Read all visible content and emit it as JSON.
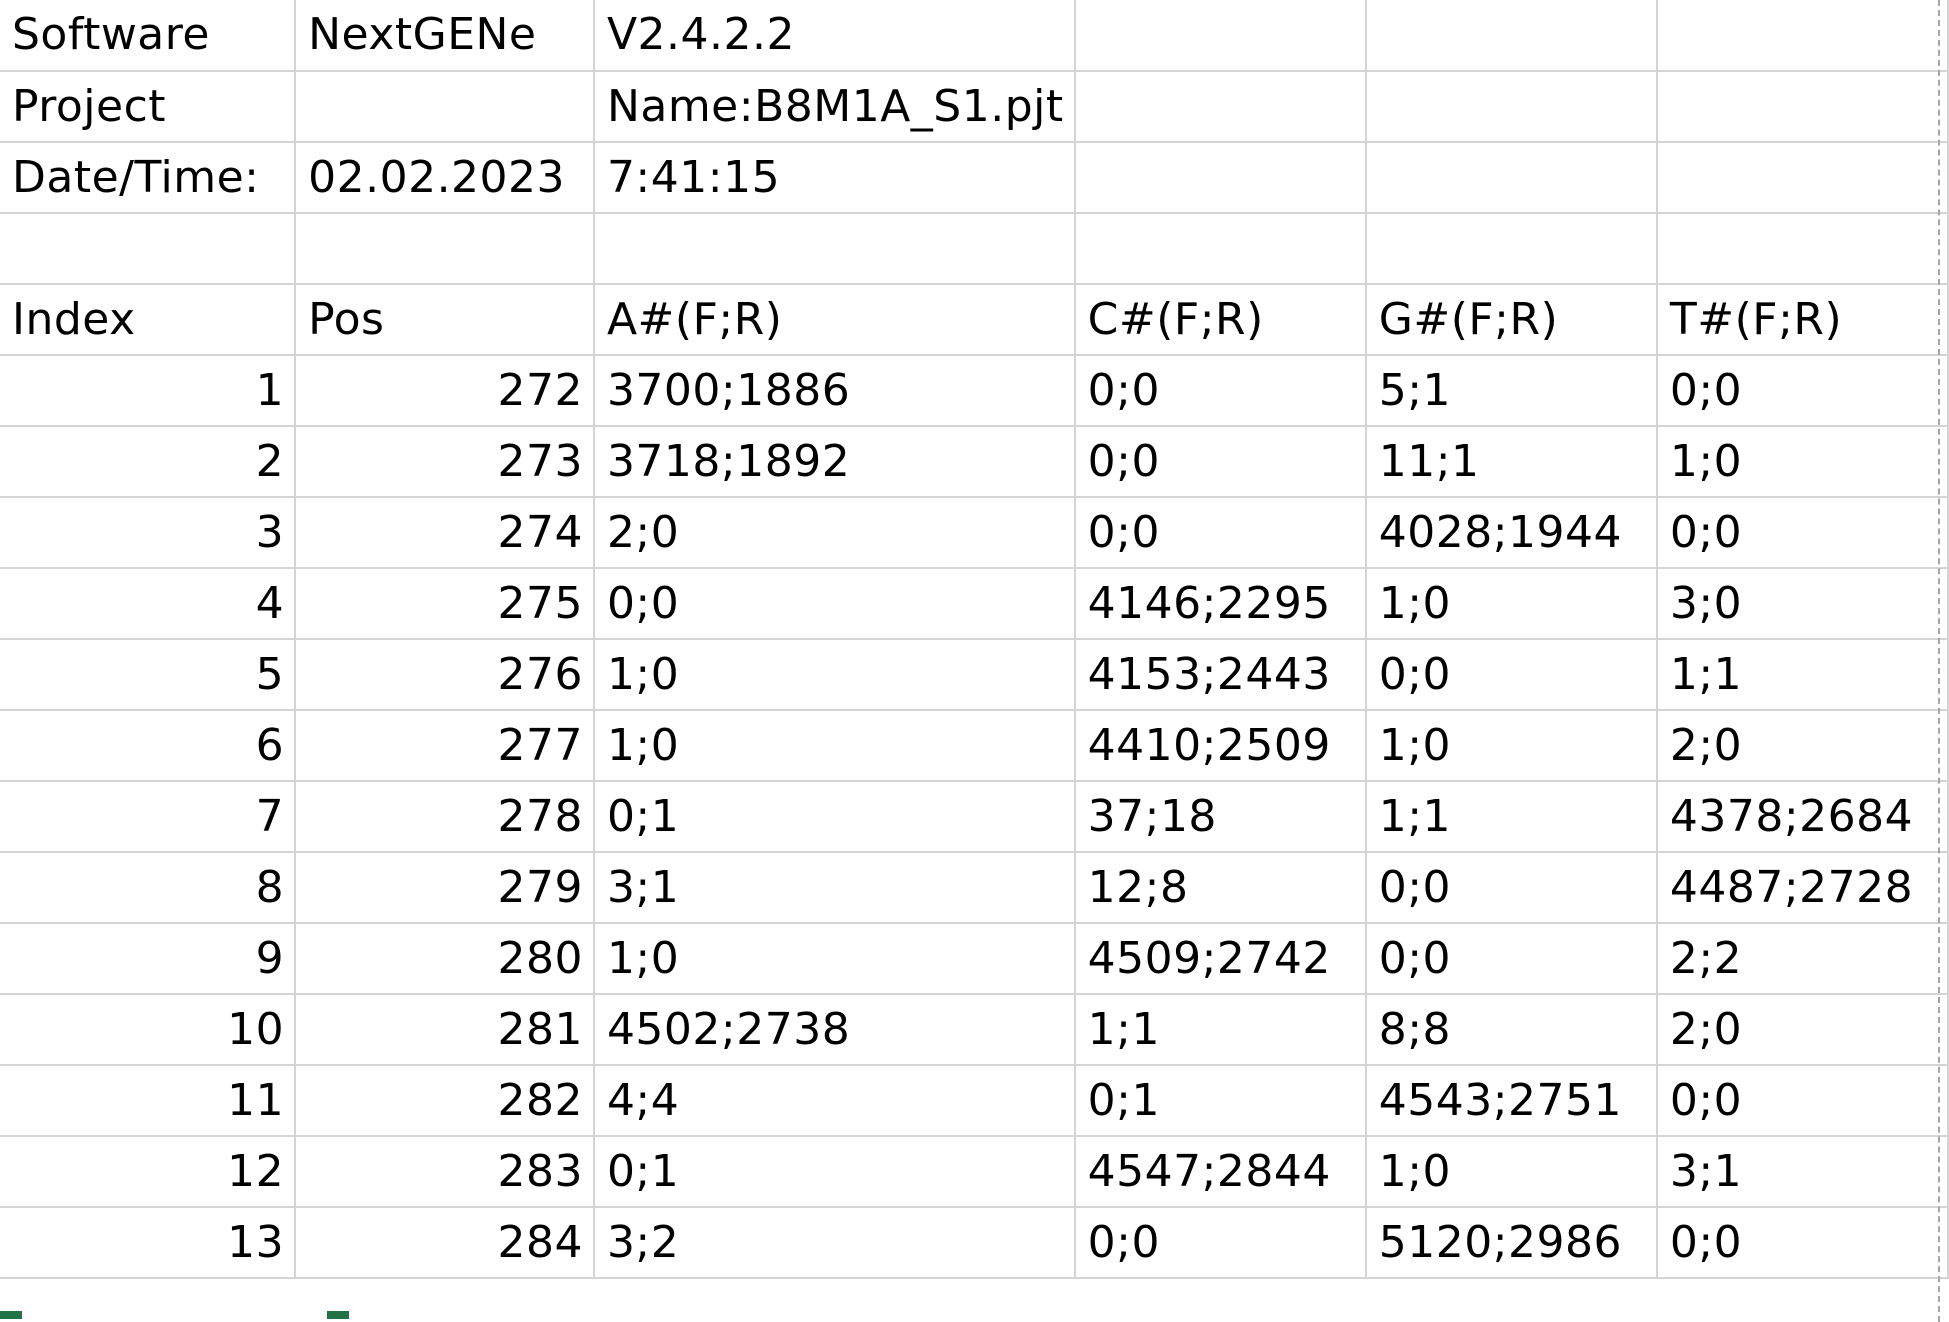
{
  "header_rows": [
    [
      "Software",
      "NextGENe",
      "V2.4.2.2",
      "",
      "",
      ""
    ],
    [
      "Project",
      "",
      "Name:B8M1A_S1.pjt",
      "",
      "",
      ""
    ],
    [
      "Date/Time:",
      "02.02.2023",
      "7:41:15",
      "",
      "",
      ""
    ],
    [
      "",
      "",
      "",
      "",
      "",
      ""
    ]
  ],
  "columns": [
    "Index",
    "Pos",
    "A#(F;R)",
    "C#(F;R)",
    "G#(F;R)",
    "T#(F;R)"
  ],
  "rows": [
    [
      "1",
      "272",
      "3700;1886",
      "0;0",
      "5;1",
      "0;0"
    ],
    [
      "2",
      "273",
      "3718;1892",
      "0;0",
      "11;1",
      "1;0"
    ],
    [
      "3",
      "274",
      "2;0",
      "0;0",
      "4028;1944",
      "0;0"
    ],
    [
      "4",
      "275",
      "0;0",
      "4146;2295",
      "1;0",
      "3;0"
    ],
    [
      "5",
      "276",
      "1;0",
      "4153;2443",
      "0;0",
      "1;1"
    ],
    [
      "6",
      "277",
      "1;0",
      "4410;2509",
      "1;0",
      "2;0"
    ],
    [
      "7",
      "278",
      "0;1",
      "37;18",
      "1;1",
      "4378;2684"
    ],
    [
      "8",
      "279",
      "3;1",
      "12;8",
      "0;0",
      "4487;2728"
    ],
    [
      "9",
      "280",
      "1;0",
      "4509;2742",
      "0;0",
      "2;2"
    ],
    [
      "10",
      "281",
      "4502;2738",
      "1;1",
      "8;8",
      "2;0"
    ],
    [
      "11",
      "282",
      "4;4",
      "0;1",
      "4543;2751",
      "0;0"
    ],
    [
      "12",
      "283",
      "0;1",
      "4547;2844",
      "1;0",
      "3;1"
    ],
    [
      "13",
      "284",
      "3;2",
      "0;0",
      "5120;2986",
      "0;0"
    ]
  ],
  "colors": {
    "gridline": "#d4d4d4",
    "page_break": "#a6a6a6",
    "selection_marker": "#217346"
  }
}
